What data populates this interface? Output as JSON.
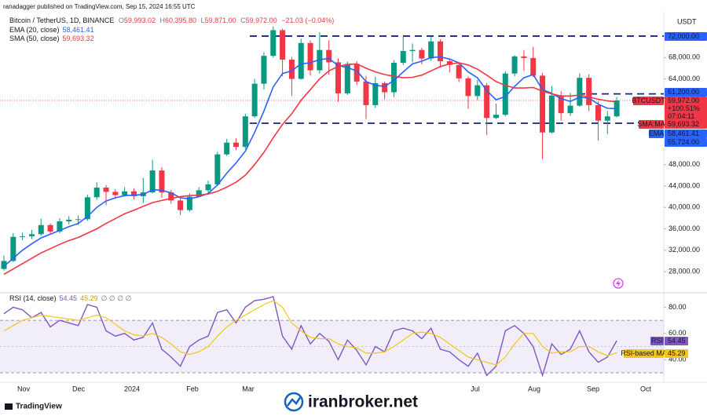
{
  "header": {
    "published": "ranadagger published on TradingView.com, Sep 15, 2024 16:55 UTC",
    "symbol": "Bitcoin / TetherUS, 1D, BINANCE",
    "quote": [
      {
        "key": "O",
        "value": "59,993.02"
      },
      {
        "key": "H",
        "value": "60,395.80"
      },
      {
        "key": "L",
        "value": "59,871.00"
      },
      {
        "key": "C",
        "value": "59,972.00"
      }
    ],
    "change": "−21.03 (−0.04%)",
    "brand": "TradingView",
    "watermark": "iranbroker.net"
  },
  "chart_data": [
    {
      "type": "candlestick",
      "currency": "USDT",
      "up_color": "#089981",
      "down_color": "#f23645",
      "open": [
        28500,
        30000,
        34500,
        34600,
        35000,
        36700,
        35500,
        37400,
        37700,
        37800,
        41900,
        43700,
        42900,
        42300,
        43000,
        42100,
        42800,
        46900,
        42800,
        41300,
        39500,
        42000,
        43200,
        44300,
        49900,
        52100,
        51300,
        57000,
        63100,
        68300,
        73100,
        67600,
        64000,
        70700,
        65600,
        69400,
        67100,
        61300,
        66800,
        63500,
        59100,
        63200,
        61500,
        67000,
        69200,
        69400,
        67800,
        71000,
        67300,
        66600,
        64100,
        60800,
        62800,
        56700,
        57300,
        65000,
        68200,
        67900,
        64600,
        54000,
        60900,
        57600,
        59000,
        64200,
        59100,
        56200,
        57000
      ],
      "high": [
        31000,
        35200,
        35300,
        35800,
        37900,
        37000,
        38000,
        38400,
        38500,
        42400,
        44700,
        44200,
        43400,
        43800,
        43600,
        45500,
        48900,
        47500,
        43300,
        41800,
        42600,
        43800,
        45000,
        50400,
        52800,
        52900,
        57500,
        64000,
        69000,
        73800,
        73400,
        68100,
        71500,
        71200,
        72700,
        71200,
        67800,
        67200,
        67300,
        64600,
        64400,
        63500,
        67500,
        71900,
        70600,
        69800,
        71900,
        71400,
        67700,
        66900,
        64500,
        63800,
        63200,
        59400,
        65400,
        68400,
        69400,
        70000,
        65100,
        62700,
        61700,
        61400,
        65000,
        64900,
        59800,
        58000,
        60600
      ],
      "low": [
        28200,
        29800,
        33900,
        34100,
        34700,
        34900,
        35200,
        36800,
        36700,
        37500,
        41400,
        40400,
        41600,
        42000,
        41500,
        40800,
        42600,
        41800,
        40700,
        38600,
        39200,
        41900,
        42600,
        44000,
        49600,
        50700,
        50900,
        56700,
        62000,
        68000,
        64500,
        60800,
        63900,
        64600,
        65000,
        64800,
        59700,
        61000,
        62800,
        56500,
        58600,
        60200,
        60600,
        66600,
        67100,
        66700,
        67400,
        66100,
        65200,
        63400,
        58400,
        60000,
        53500,
        56500,
        57000,
        64500,
        65500,
        64300,
        49000,
        53800,
        56200,
        57100,
        58800,
        58000,
        52500,
        53700,
        56800
      ],
      "close": [
        30000,
        34500,
        34600,
        35000,
        36700,
        35500,
        37400,
        37700,
        37800,
        41900,
        43700,
        42900,
        42300,
        43000,
        42100,
        42800,
        46900,
        42800,
        41300,
        39500,
        42000,
        43200,
        44300,
        49900,
        52100,
        51300,
        57000,
        63100,
        68300,
        73100,
        67600,
        64000,
        70700,
        65600,
        69400,
        67100,
        61300,
        66800,
        63500,
        59100,
        63200,
        61500,
        67000,
        69200,
        69400,
        67800,
        71000,
        67300,
        66600,
        64100,
        60800,
        62800,
        56700,
        57300,
        65000,
        68200,
        67900,
        64600,
        54000,
        60900,
        57600,
        59000,
        64200,
        59100,
        56200,
        57000,
        59972
      ],
      "series": [
        {
          "name": "EMA (20, close)",
          "color": "#2962ff",
          "last_label": "58,461.41",
          "tag": "EMA",
          "values": [
            29000,
            30500,
            32000,
            33200,
            34300,
            35000,
            35700,
            36400,
            37000,
            38300,
            40000,
            41200,
            41800,
            42200,
            42300,
            42400,
            43300,
            43200,
            42700,
            41800,
            41600,
            42000,
            42600,
            44200,
            46400,
            48300,
            50500,
            54000,
            58000,
            62500,
            65000,
            65500,
            66800,
            67000,
            67600,
            67800,
            66500,
            66100,
            65500,
            63500,
            62800,
            62600,
            63700,
            65300,
            66800,
            67300,
            68000,
            68100,
            67700,
            67000,
            65300,
            64200,
            61800,
            60100,
            60700,
            62600,
            64200,
            64800,
            62000,
            61300,
            60300,
            59800,
            60600,
            60400,
            59300,
            58500,
            58461.41
          ]
        },
        {
          "name": "SMA (50, close)",
          "color": "#f23645",
          "last_label": "59,693.32",
          "tag": "SMA:MA",
          "values": [
            27500,
            28500,
            29500,
            30500,
            31500,
            32300,
            33100,
            33800,
            34400,
            35200,
            36000,
            37000,
            37900,
            38800,
            39500,
            40200,
            40900,
            41300,
            41700,
            42000,
            42200,
            42300,
            42500,
            43000,
            43800,
            44700,
            46000,
            48000,
            50300,
            53000,
            55500,
            57500,
            60000,
            62000,
            64000,
            65500,
            66300,
            66700,
            66800,
            66000,
            65300,
            64800,
            64500,
            64200,
            64300,
            64700,
            65500,
            66300,
            66800,
            67000,
            66600,
            65800,
            64700,
            63500,
            62800,
            62300,
            62300,
            62400,
            61700,
            61200,
            60800,
            60800,
            61000,
            60600,
            60200,
            59900,
            59693.32
          ]
        }
      ],
      "x_labels": [
        "Nov",
        "Dec",
        "2024",
        "Feb",
        "Mar",
        "Jul",
        "Aug",
        "Sep",
        "Oct"
      ],
      "ylim": [
        24500,
        75800
      ],
      "yticks": [
        {
          "value": 28000,
          "label": "28,000.00"
        },
        {
          "value": 32000,
          "label": "32,000.00"
        },
        {
          "value": 36000,
          "label": "36,000.00"
        },
        {
          "value": 40000,
          "label": "40,000.00"
        },
        {
          "value": 44000,
          "label": "44,000.00"
        },
        {
          "value": 48000,
          "label": "48,000.00"
        },
        {
          "value": 64000,
          "label": "64,000.00"
        },
        {
          "value": 68000,
          "label": "68,000.00"
        }
      ],
      "levels": [
        {
          "value": 72000,
          "label": "72,000.00"
        },
        {
          "value": 61200,
          "label": "61,200.00"
        },
        {
          "value": 55724,
          "label": "55,724.00"
        }
      ],
      "level_color": "#1a237e",
      "last_price": {
        "value": 59972,
        "label": "59,972.00",
        "symbol": "BTCUSDT",
        "change": "+100.51%",
        "countdown": "07:04:11"
      }
    },
    {
      "type": "line",
      "title": "RSI (14, close)",
      "extra": "∅ ∅ ∅ ∅",
      "series": [
        {
          "name": "RSI",
          "color": "#7e57c2",
          "last_label": "54.45",
          "values": [
            75,
            80,
            78,
            72,
            76,
            65,
            70,
            68,
            66,
            82,
            80,
            62,
            58,
            60,
            55,
            57,
            68,
            48,
            42,
            35,
            50,
            55,
            58,
            76,
            78,
            68,
            80,
            85,
            86,
            88,
            58,
            48,
            66,
            52,
            60,
            54,
            40,
            55,
            47,
            36,
            50,
            46,
            62,
            64,
            62,
            56,
            64,
            48,
            46,
            40,
            35,
            45,
            28,
            35,
            62,
            66,
            60,
            50,
            28,
            52,
            44,
            48,
            62,
            46,
            38,
            42,
            54.45
          ]
        },
        {
          "name": "RSI-based MA",
          "color": "#f5c518",
          "last_label": "45.29",
          "values": [
            62,
            66,
            70,
            72,
            74,
            73,
            72,
            71,
            70,
            72,
            74,
            72,
            67,
            62,
            59,
            58,
            60,
            57,
            52,
            46,
            44,
            46,
            50,
            58,
            65,
            70,
            74,
            78,
            82,
            85,
            80,
            68,
            62,
            57,
            56,
            56,
            52,
            50,
            49,
            45,
            45,
            46,
            50,
            55,
            60,
            61,
            60,
            57,
            52,
            47,
            42,
            40,
            38,
            36,
            42,
            52,
            60,
            60,
            50,
            45,
            46,
            46,
            50,
            50,
            46,
            43,
            45.29
          ]
        }
      ],
      "ylim": [
        24,
        88
      ],
      "yticks": [
        {
          "value": 80,
          "label": "80.00"
        },
        {
          "value": 60,
          "label": "60.00"
        },
        {
          "value": 40,
          "label": "40.00"
        }
      ],
      "band": [
        70,
        30
      ],
      "mid": 50
    }
  ]
}
